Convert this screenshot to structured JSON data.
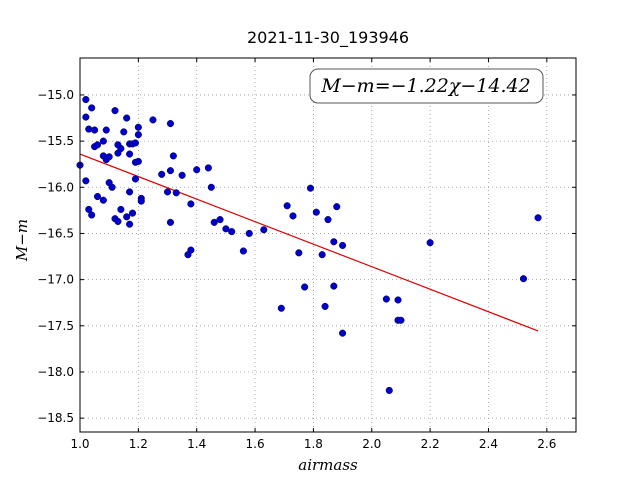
{
  "chart_data": {
    "type": "scatter",
    "title": "2021-11-30_193946",
    "xlabel": "airmass",
    "ylabel": "M−m",
    "annotation": "M−m=−1.22χ−14.42",
    "xlim": [
      1.0,
      2.7
    ],
    "ylim": [
      -18.65,
      -14.6
    ],
    "x_ticks": [
      1.0,
      1.2,
      1.4,
      1.6,
      1.8,
      2.0,
      2.2,
      2.4,
      2.6
    ],
    "x_tick_labels": [
      "1.0",
      "1.2",
      "1.4",
      "1.6",
      "1.8",
      "2.0",
      "2.2",
      "2.4",
      "2.6"
    ],
    "y_ticks": [
      -15.0,
      -15.5,
      -16.0,
      -16.5,
      -17.0,
      -17.5,
      -18.0,
      -18.5
    ],
    "y_tick_labels": [
      "−15.0",
      "−15.5",
      "−16.0",
      "−16.5",
      "−17.0",
      "−17.5",
      "−18.0",
      "−18.5"
    ],
    "grid": true,
    "point_color": "#0000cc",
    "fit_color": "#dd0000",
    "fit": {
      "slope": -1.22,
      "intercept": -14.42,
      "x_range": [
        1.0,
        2.57
      ]
    },
    "points": [
      [
        1.0,
        -15.76
      ],
      [
        1.02,
        -15.05
      ],
      [
        1.02,
        -15.24
      ],
      [
        1.03,
        -15.37
      ],
      [
        1.04,
        -15.14
      ],
      [
        1.05,
        -15.56
      ],
      [
        1.05,
        -15.38
      ],
      [
        1.06,
        -15.54
      ],
      [
        1.02,
        -15.93
      ],
      [
        1.03,
        -16.24
      ],
      [
        1.04,
        -16.3
      ],
      [
        1.06,
        -16.1
      ],
      [
        1.08,
        -15.66
      ],
      [
        1.08,
        -15.5
      ],
      [
        1.09,
        -15.38
      ],
      [
        1.09,
        -15.7
      ],
      [
        1.1,
        -15.67
      ],
      [
        1.08,
        -16.14
      ],
      [
        1.1,
        -15.95
      ],
      [
        1.11,
        -16.0
      ],
      [
        1.12,
        -15.17
      ],
      [
        1.13,
        -15.63
      ],
      [
        1.13,
        -15.54
      ],
      [
        1.14,
        -15.58
      ],
      [
        1.12,
        -16.34
      ],
      [
        1.13,
        -16.37
      ],
      [
        1.14,
        -16.24
      ],
      [
        1.15,
        -15.4
      ],
      [
        1.16,
        -15.25
      ],
      [
        1.17,
        -15.53
      ],
      [
        1.17,
        -15.64
      ],
      [
        1.18,
        -15.53
      ],
      [
        1.19,
        -15.52
      ],
      [
        1.2,
        -15.35
      ],
      [
        1.2,
        -15.43
      ],
      [
        1.19,
        -15.73
      ],
      [
        1.2,
        -15.72
      ],
      [
        1.16,
        -16.32
      ],
      [
        1.17,
        -16.05
      ],
      [
        1.17,
        -16.4
      ],
      [
        1.18,
        -16.28
      ],
      [
        1.19,
        -15.91
      ],
      [
        1.21,
        -16.12
      ],
      [
        1.21,
        -16.15
      ],
      [
        1.25,
        -15.27
      ],
      [
        1.28,
        -15.86
      ],
      [
        1.3,
        -16.05
      ],
      [
        1.31,
        -15.31
      ],
      [
        1.31,
        -15.82
      ],
      [
        1.32,
        -15.66
      ],
      [
        1.31,
        -16.38
      ],
      [
        1.33,
        -16.06
      ],
      [
        1.35,
        -15.87
      ],
      [
        1.37,
        -16.73
      ],
      [
        1.38,
        -16.18
      ],
      [
        1.38,
        -16.68
      ],
      [
        1.4,
        -15.81
      ],
      [
        1.44,
        -15.79
      ],
      [
        1.45,
        -16.0
      ],
      [
        1.46,
        -16.38
      ],
      [
        1.48,
        -16.35
      ],
      [
        1.5,
        -16.45
      ],
      [
        1.52,
        -16.48
      ],
      [
        1.56,
        -16.69
      ],
      [
        1.58,
        -16.5
      ],
      [
        1.63,
        -16.46
      ],
      [
        1.69,
        -17.31
      ],
      [
        1.71,
        -16.2
      ],
      [
        1.73,
        -16.31
      ],
      [
        1.75,
        -16.71
      ],
      [
        1.77,
        -17.08
      ],
      [
        1.79,
        -16.01
      ],
      [
        1.81,
        -16.27
      ],
      [
        1.83,
        -16.73
      ],
      [
        1.84,
        -17.29
      ],
      [
        1.85,
        -16.35
      ],
      [
        1.87,
        -16.59
      ],
      [
        1.87,
        -17.07
      ],
      [
        1.88,
        -16.21
      ],
      [
        1.9,
        -16.63
      ],
      [
        1.9,
        -17.58
      ],
      [
        2.05,
        -17.21
      ],
      [
        2.06,
        -18.2
      ],
      [
        2.09,
        -17.22
      ],
      [
        2.09,
        -17.44
      ],
      [
        2.1,
        -17.44
      ],
      [
        2.2,
        -16.6
      ],
      [
        2.52,
        -16.99
      ],
      [
        2.57,
        -16.33
      ]
    ]
  }
}
